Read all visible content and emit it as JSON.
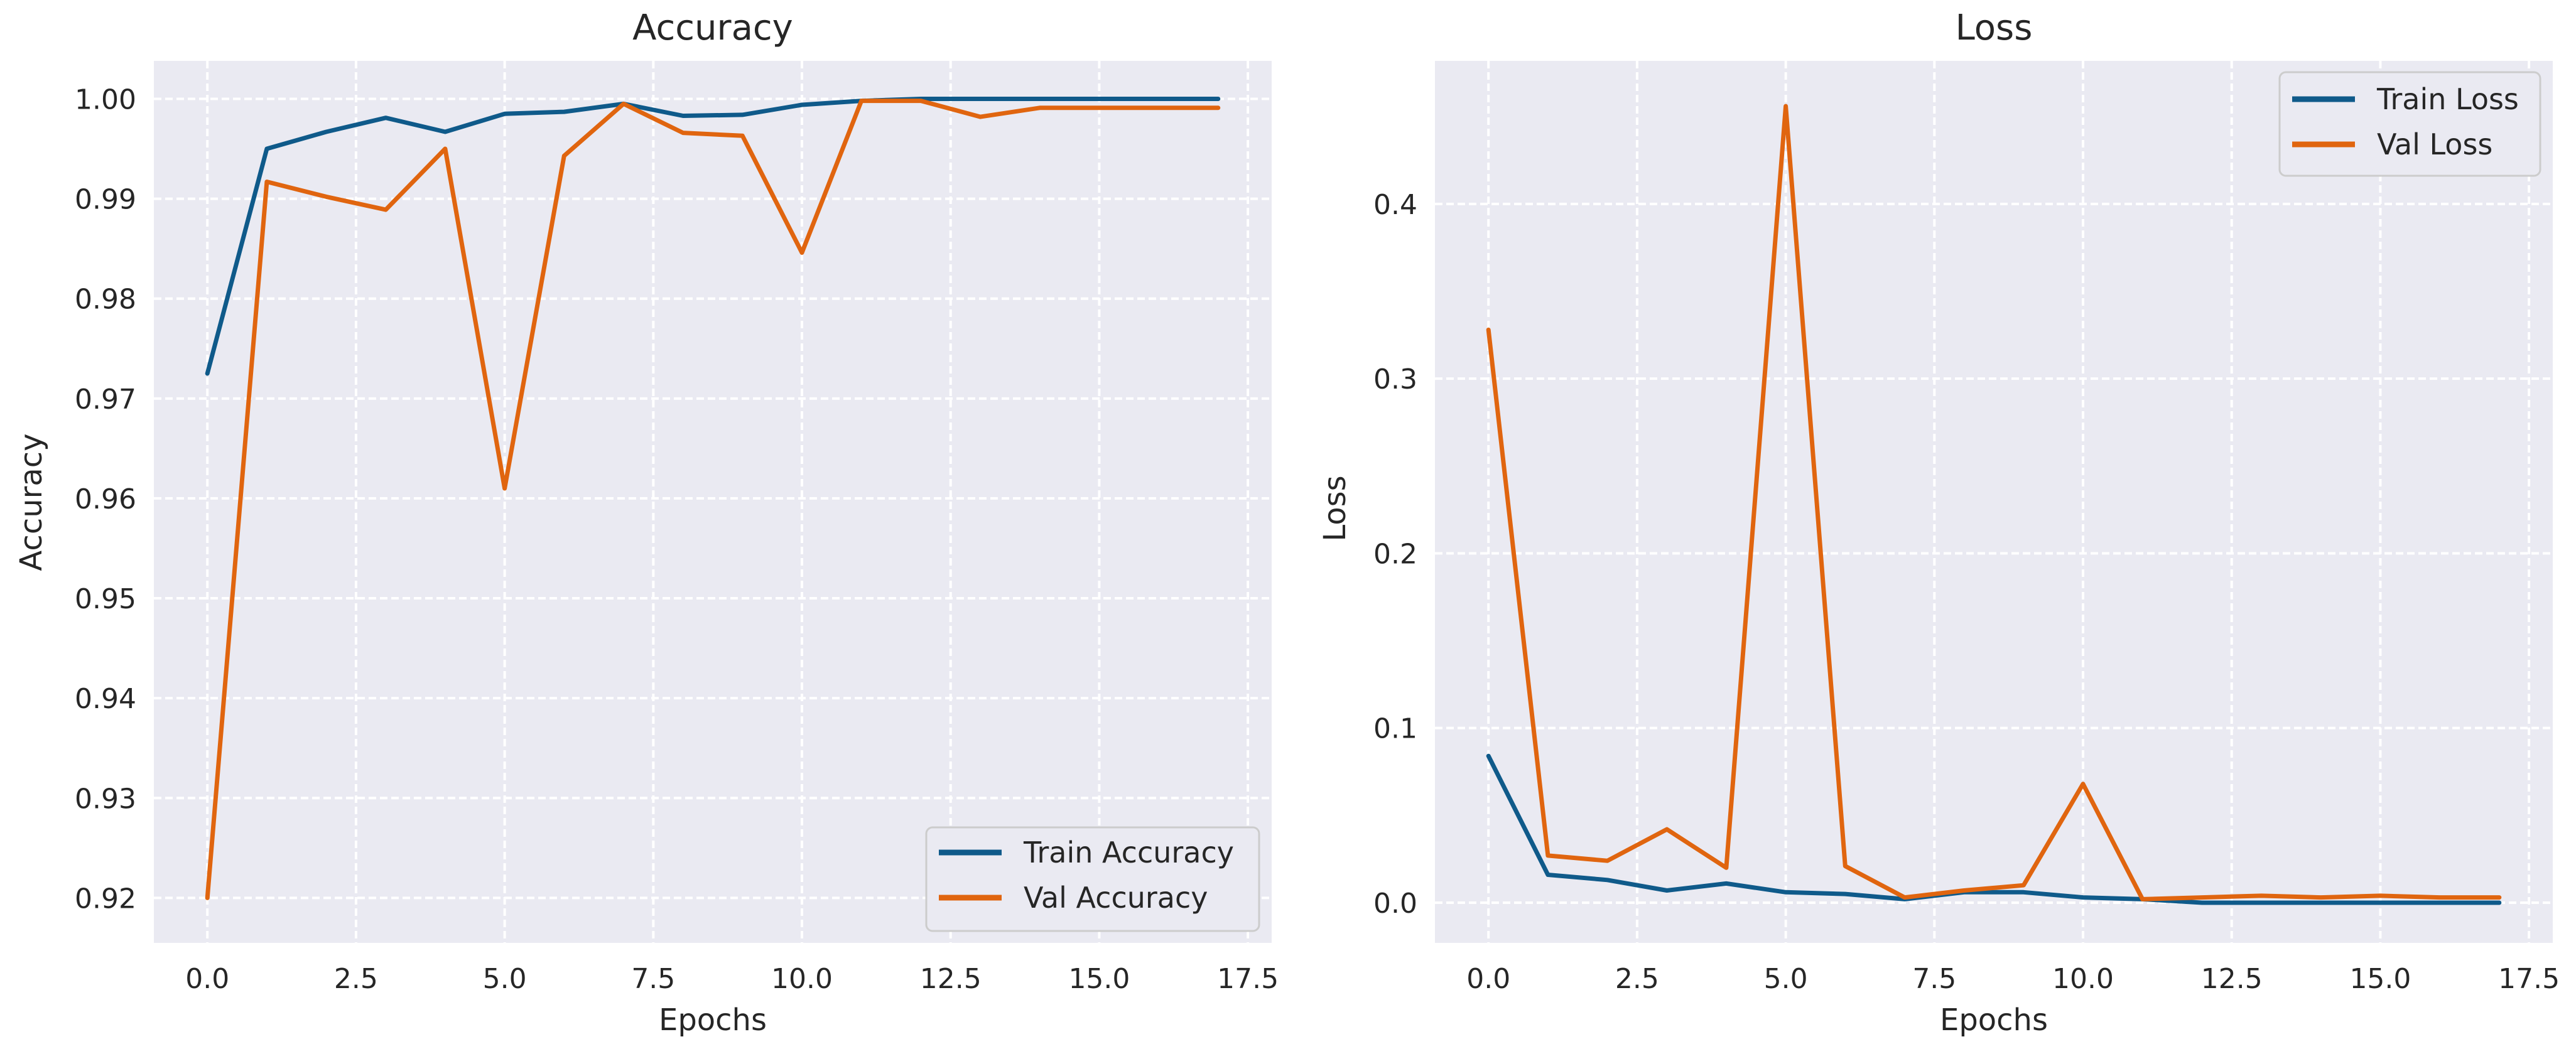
{
  "chart_data": [
    {
      "type": "line",
      "title": "Accuracy",
      "xlabel": "Epochs",
      "ylabel": "Accuracy",
      "xlim": [
        -0.9,
        17.9
      ],
      "ylim": [
        0.9155,
        1.0038
      ],
      "xticks": [
        0.0,
        2.5,
        5.0,
        7.5,
        10.0,
        12.5,
        15.0,
        17.5
      ],
      "xtick_labels": [
        "0.0",
        "2.5",
        "5.0",
        "7.5",
        "10.0",
        "12.5",
        "15.0",
        "17.5"
      ],
      "yticks": [
        0.92,
        0.93,
        0.94,
        0.95,
        0.96,
        0.97,
        0.98,
        0.99,
        1.0
      ],
      "ytick_labels": [
        "0.92",
        "0.93",
        "0.94",
        "0.95",
        "0.96",
        "0.97",
        "0.98",
        "0.99",
        "1.00"
      ],
      "grid": true,
      "legend_position": "lower-right",
      "x": [
        0,
        1,
        2,
        3,
        4,
        5,
        6,
        7,
        8,
        9,
        10,
        11,
        12,
        13,
        14,
        15,
        16,
        17
      ],
      "series": [
        {
          "name": "Train Accuracy",
          "color": "#0f5a8a",
          "values": [
            0.9725,
            0.995,
            0.9967,
            0.9981,
            0.9967,
            0.9985,
            0.9987,
            0.9995,
            0.9983,
            0.9984,
            0.9994,
            0.9998,
            1.0,
            1.0,
            1.0,
            1.0,
            1.0,
            1.0
          ]
        },
        {
          "name": "Val Accuracy",
          "color": "#e0650f",
          "values": [
            0.92,
            0.9917,
            0.9902,
            0.9889,
            0.995,
            0.961,
            0.9943,
            0.9995,
            0.9966,
            0.9963,
            0.9846,
            0.9998,
            0.9998,
            0.9982,
            0.9991,
            0.9991,
            0.9991,
            0.9991
          ]
        }
      ]
    },
    {
      "type": "line",
      "title": "Loss",
      "xlabel": "Epochs",
      "ylabel": "Loss",
      "xlim": [
        -0.9,
        17.9
      ],
      "ylim": [
        -0.023,
        0.4819
      ],
      "xticks": [
        0.0,
        2.5,
        5.0,
        7.5,
        10.0,
        12.5,
        15.0,
        17.5
      ],
      "xtick_labels": [
        "0.0",
        "2.5",
        "5.0",
        "7.5",
        "10.0",
        "12.5",
        "15.0",
        "17.5"
      ],
      "yticks": [
        0.0,
        0.1,
        0.2,
        0.3,
        0.4
      ],
      "ytick_labels": [
        "0.0",
        "0.1",
        "0.2",
        "0.3",
        "0.4"
      ],
      "grid": true,
      "legend_position": "upper-right",
      "x": [
        0,
        1,
        2,
        3,
        4,
        5,
        6,
        7,
        8,
        9,
        10,
        11,
        12,
        13,
        14,
        15,
        16,
        17
      ],
      "series": [
        {
          "name": "Train Loss",
          "color": "#0f5a8a",
          "values": [
            0.084,
            0.016,
            0.013,
            0.007,
            0.011,
            0.006,
            0.005,
            0.002,
            0.006,
            0.006,
            0.003,
            0.002,
            0.0,
            0.0,
            0.0,
            0.0,
            0.0,
            0.0
          ]
        },
        {
          "name": "Val Loss",
          "color": "#e0650f",
          "values": [
            0.328,
            0.027,
            0.024,
            0.042,
            0.02,
            0.456,
            0.021,
            0.003,
            0.007,
            0.01,
            0.068,
            0.002,
            0.003,
            0.004,
            0.003,
            0.004,
            0.003,
            0.003
          ]
        }
      ]
    }
  ]
}
